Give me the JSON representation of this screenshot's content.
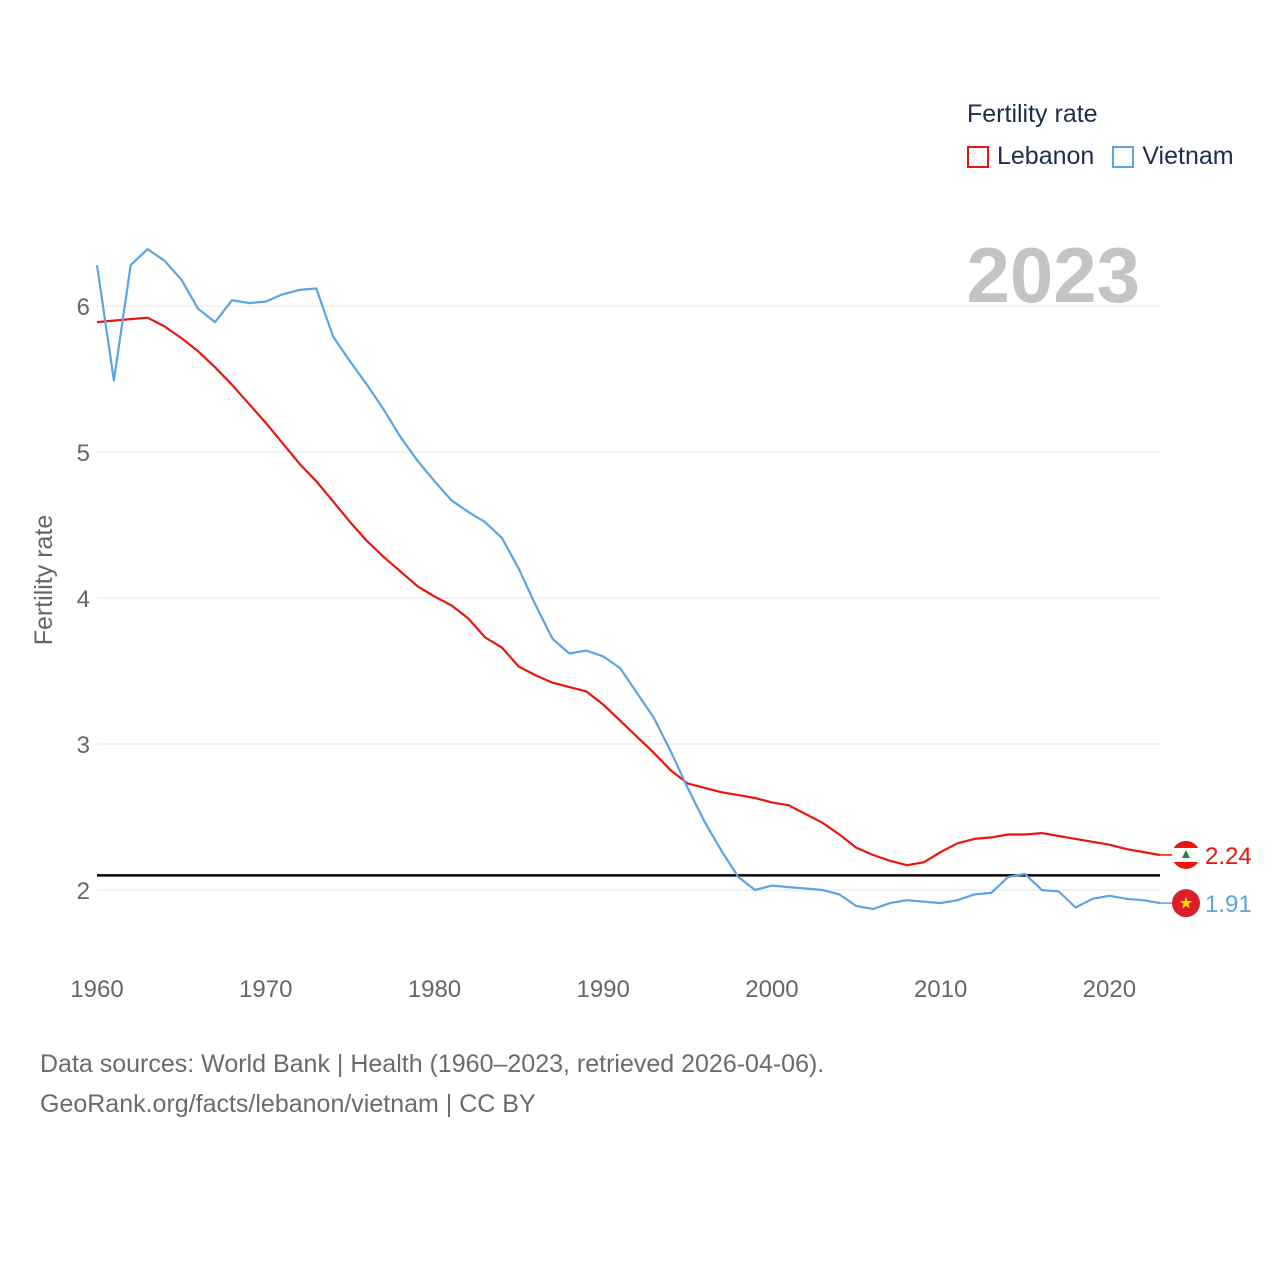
{
  "legend": {
    "title": "Fertility rate",
    "items": [
      {
        "label": "Lebanon",
        "color": "#e8160c"
      },
      {
        "label": "Vietnam",
        "color": "#5ba4e5"
      }
    ]
  },
  "year_label": "2023",
  "source": {
    "line1": "Data sources: World Bank | Health (1960–2023, retrieved 2026-04-06).",
    "line2": "GeoRank.org/facts/lebanon/vietnam | CC BY"
  },
  "chart_data": {
    "type": "line",
    "title": "",
    "xlabel": "",
    "ylabel": "Fertility rate",
    "xlim": [
      1960,
      2023
    ],
    "ylim": [
      1.5,
      6.5
    ],
    "x_ticks": [
      1960,
      1970,
      1980,
      1990,
      2000,
      2010,
      2020
    ],
    "y_ticks": [
      2,
      3,
      4,
      5,
      6
    ],
    "reference_line": {
      "y": 2.1,
      "color": "#000000"
    },
    "x": [
      1960,
      1961,
      1962,
      1963,
      1964,
      1965,
      1966,
      1967,
      1968,
      1969,
      1970,
      1971,
      1972,
      1973,
      1974,
      1975,
      1976,
      1977,
      1978,
      1979,
      1980,
      1981,
      1982,
      1983,
      1984,
      1985,
      1986,
      1987,
      1988,
      1989,
      1990,
      1991,
      1992,
      1993,
      1994,
      1995,
      1996,
      1997,
      1998,
      1999,
      2000,
      2001,
      2002,
      2003,
      2004,
      2005,
      2006,
      2007,
      2008,
      2009,
      2010,
      2011,
      2012,
      2013,
      2014,
      2015,
      2016,
      2017,
      2018,
      2019,
      2020,
      2021,
      2022,
      2023
    ],
    "series": [
      {
        "name": "Lebanon",
        "color": "#e8160c",
        "end_label": "2.24",
        "values": [
          5.89,
          5.9,
          5.91,
          5.92,
          5.86,
          5.78,
          5.69,
          5.58,
          5.46,
          5.33,
          5.2,
          5.06,
          4.92,
          4.8,
          4.66,
          4.52,
          4.39,
          4.28,
          4.18,
          4.08,
          4.01,
          3.95,
          3.86,
          3.73,
          3.66,
          3.53,
          3.47,
          3.42,
          3.39,
          3.36,
          3.27,
          3.16,
          3.05,
          2.94,
          2.82,
          2.73,
          2.7,
          2.67,
          2.65,
          2.63,
          2.6,
          2.58,
          2.52,
          2.46,
          2.38,
          2.29,
          2.24,
          2.2,
          2.17,
          2.19,
          2.26,
          2.32,
          2.35,
          2.36,
          2.38,
          2.38,
          2.39,
          2.37,
          2.35,
          2.33,
          2.31,
          2.28,
          2.26,
          2.24
        ]
      },
      {
        "name": "Vietnam",
        "color": "#5ba4e5",
        "end_label": "1.91",
        "values": [
          6.28,
          5.49,
          6.28,
          6.39,
          6.31,
          6.18,
          5.98,
          5.89,
          6.04,
          6.02,
          6.03,
          6.08,
          6.11,
          6.12,
          5.79,
          5.62,
          5.46,
          5.29,
          5.1,
          4.94,
          4.8,
          4.67,
          4.59,
          4.52,
          4.41,
          4.2,
          3.95,
          3.72,
          3.62,
          3.64,
          3.6,
          3.52,
          3.35,
          3.18,
          2.95,
          2.7,
          2.47,
          2.27,
          2.09,
          2.0,
          2.03,
          2.02,
          2.01,
          2.0,
          1.97,
          1.89,
          1.87,
          1.91,
          1.93,
          1.92,
          1.91,
          1.93,
          1.97,
          1.98,
          2.09,
          2.11,
          2.0,
          1.99,
          1.88,
          1.94,
          1.96,
          1.94,
          1.93,
          1.91
        ]
      }
    ]
  }
}
